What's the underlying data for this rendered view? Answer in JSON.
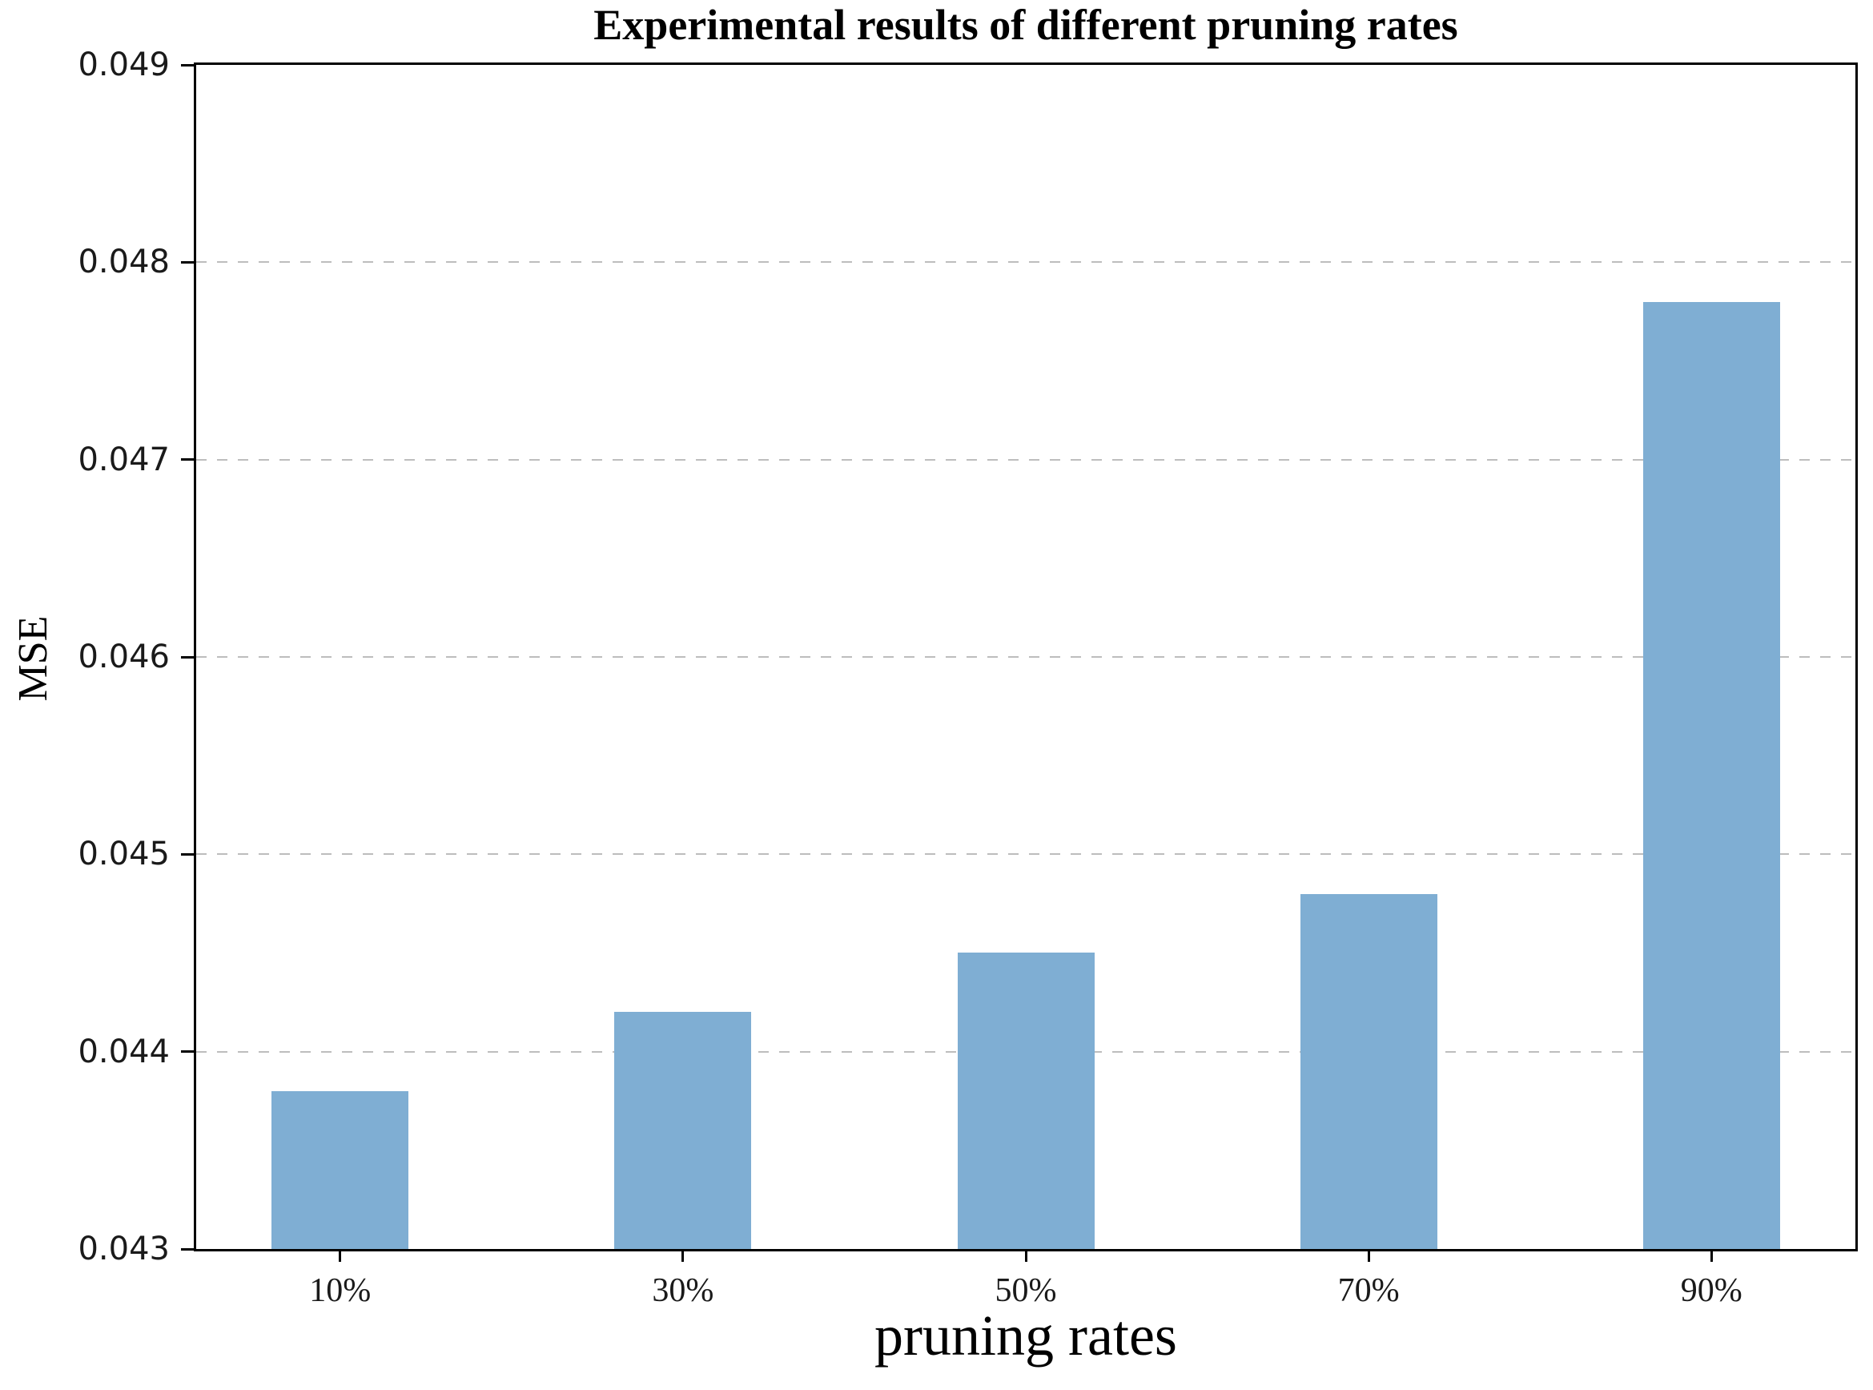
{
  "chart_data": {
    "type": "bar",
    "title": "Experimental results of different pruning rates",
    "xlabel": "pruning rates",
    "ylabel": "MSE",
    "categories": [
      "10%",
      "30%",
      "50%",
      "70%",
      "90%"
    ],
    "values": [
      0.0438,
      0.0442,
      0.0445,
      0.0448,
      0.0478
    ],
    "ylim": [
      0.043,
      0.049
    ],
    "ytick_step": 0.001,
    "ytick_labels": [
      "0.043",
      "0.044",
      "0.045",
      "0.046",
      "0.047",
      "0.048",
      "0.049"
    ],
    "grid": "horizontal dashed gridlines at interior y-ticks",
    "legend": "none",
    "colors": {
      "bar": "#7faed3",
      "gridline": "#bdbdbd",
      "axis": "#000000",
      "background": "#ffffff"
    }
  }
}
